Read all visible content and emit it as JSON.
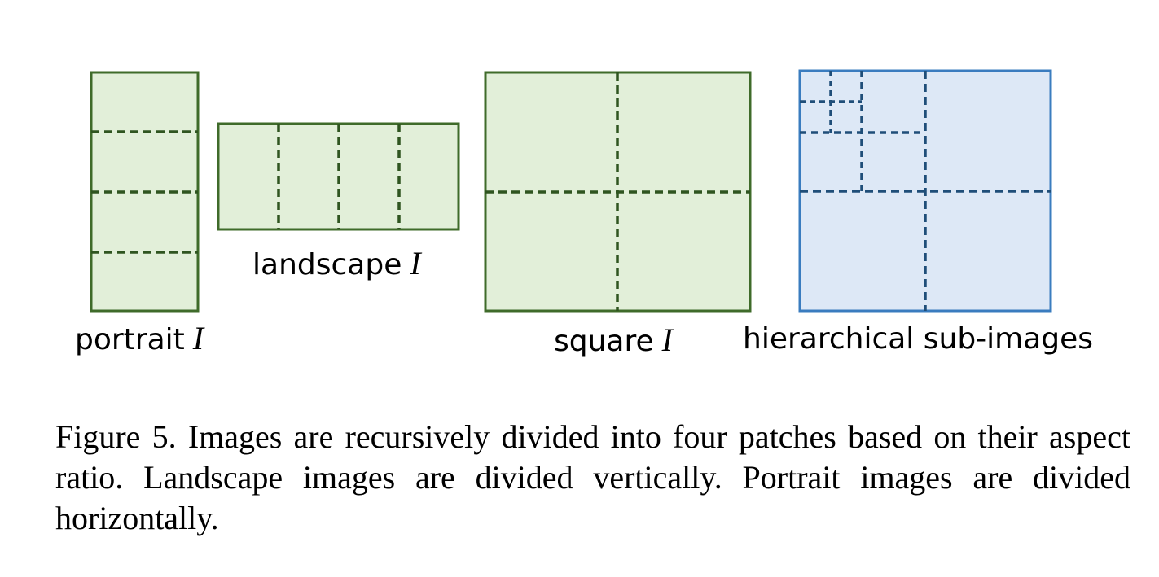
{
  "figure": {
    "labels": {
      "portrait": "portrait",
      "landscape": "landscape",
      "square": "square",
      "image_var": "I",
      "hierarchical": "hierarchical sub-images"
    },
    "colors": {
      "green_fill": "#e2efd9",
      "green_stroke": "#3f6b2a",
      "green_dash": "#2f5520",
      "blue_fill": "#dde8f6",
      "blue_stroke": "#3a7cbf",
      "blue_dash": "#1f4e79"
    }
  },
  "caption": {
    "text": "Figure 5. Images are recursively divided into four patches based on their aspect ratio. Landscape images are divided vertically. Portrait images are divided horizontally."
  }
}
